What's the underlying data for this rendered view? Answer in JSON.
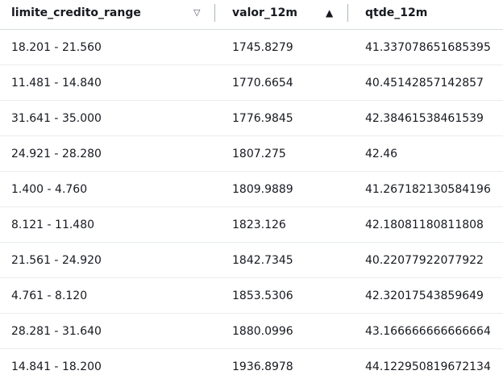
{
  "columns": [
    {
      "label": "limite_credito_range",
      "sort_icon": "▽",
      "sort_state": "unsorted"
    },
    {
      "label": "valor_12m",
      "sort_icon": "▲",
      "sort_state": "ascending"
    },
    {
      "label": "qtde_12m"
    }
  ],
  "rows": [
    [
      "18.201 - 21.560",
      "1745.8279",
      "41.337078651685395"
    ],
    [
      "11.481 - 14.840",
      "1770.6654",
      "40.45142857142857"
    ],
    [
      "31.641 - 35.000",
      "1776.9845",
      "42.38461538461539"
    ],
    [
      "24.921 - 28.280",
      "1807.275",
      "42.46"
    ],
    [
      "1.400 - 4.760",
      "1809.9889",
      "41.267182130584196"
    ],
    [
      "8.121 - 11.480",
      "1823.126",
      "42.18081180811808"
    ],
    [
      "21.561 - 24.920",
      "1842.7345",
      "40.22077922077922"
    ],
    [
      "4.761 - 8.120",
      "1853.5306",
      "42.32017543859649"
    ],
    [
      "28.281 - 31.640",
      "1880.0996",
      "43.166666666666664"
    ],
    [
      "14.841 - 18.200",
      "1936.8978",
      "44.122950819672134"
    ]
  ]
}
